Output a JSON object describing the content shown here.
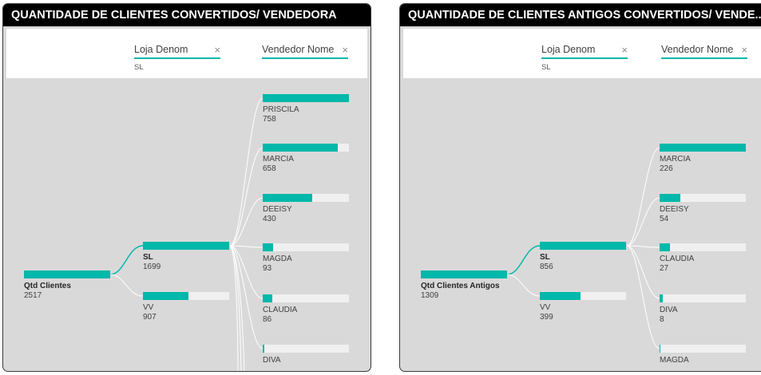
{
  "panels": [
    {
      "title": "QUANTIDADE DE CLIENTES CONVERTIDOS/ VENDEDORA",
      "levels": [
        {
          "label": "Loja Denom",
          "close": "×",
          "filter": "SL"
        },
        {
          "label": "Vendedor Nome",
          "close": "×",
          "filter": ""
        }
      ],
      "root": {
        "label": "Qtd Clientes",
        "value": "2517",
        "fill": 1.0
      },
      "stores": [
        {
          "label": "SL",
          "value": "1699",
          "fill": 1.0,
          "selected": true
        },
        {
          "label": "VV",
          "value": "907",
          "fill": 0.53,
          "selected": false
        }
      ],
      "sellers": [
        {
          "label": "PRISCILA",
          "value": "758",
          "fill": 1.0
        },
        {
          "label": "MARCIA",
          "value": "658",
          "fill": 0.87
        },
        {
          "label": "DEEISY",
          "value": "430",
          "fill": 0.57
        },
        {
          "label": "MAGDA",
          "value": "93",
          "fill": 0.12
        },
        {
          "label": "CLAUDIA",
          "value": "86",
          "fill": 0.11
        },
        {
          "label": "DIVA",
          "value": "",
          "fill": 0.02
        }
      ]
    },
    {
      "title": "QUANTIDADE DE CLIENTES ANTIGOS CONVERTIDOS/ VENDE...",
      "levels": [
        {
          "label": "Loja Denom",
          "close": "×",
          "filter": "SL"
        },
        {
          "label": "Vendedor Nome",
          "close": "×",
          "filter": ""
        }
      ],
      "root": {
        "label": "Qtd Clientes Antigos",
        "value": "1309",
        "fill": 1.0
      },
      "stores": [
        {
          "label": "SL",
          "value": "856",
          "fill": 1.0,
          "selected": true
        },
        {
          "label": "VV",
          "value": "399",
          "fill": 0.47,
          "selected": false
        }
      ],
      "sellers": [
        {
          "label": "MARCIA",
          "value": "226",
          "fill": 1.0
        },
        {
          "label": "DEEISY",
          "value": "54",
          "fill": 0.24
        },
        {
          "label": "CLAUDIA",
          "value": "27",
          "fill": 0.12
        },
        {
          "label": "DIVA",
          "value": "8",
          "fill": 0.035
        },
        {
          "label": "MAGDA",
          "value": "",
          "fill": 0.01
        }
      ]
    }
  ],
  "colors": {
    "accent": "#01b8aa",
    "bar_bg": "#f0f0f0",
    "title_bg": "#000000",
    "canvas_bg": "#d9d9d9"
  }
}
